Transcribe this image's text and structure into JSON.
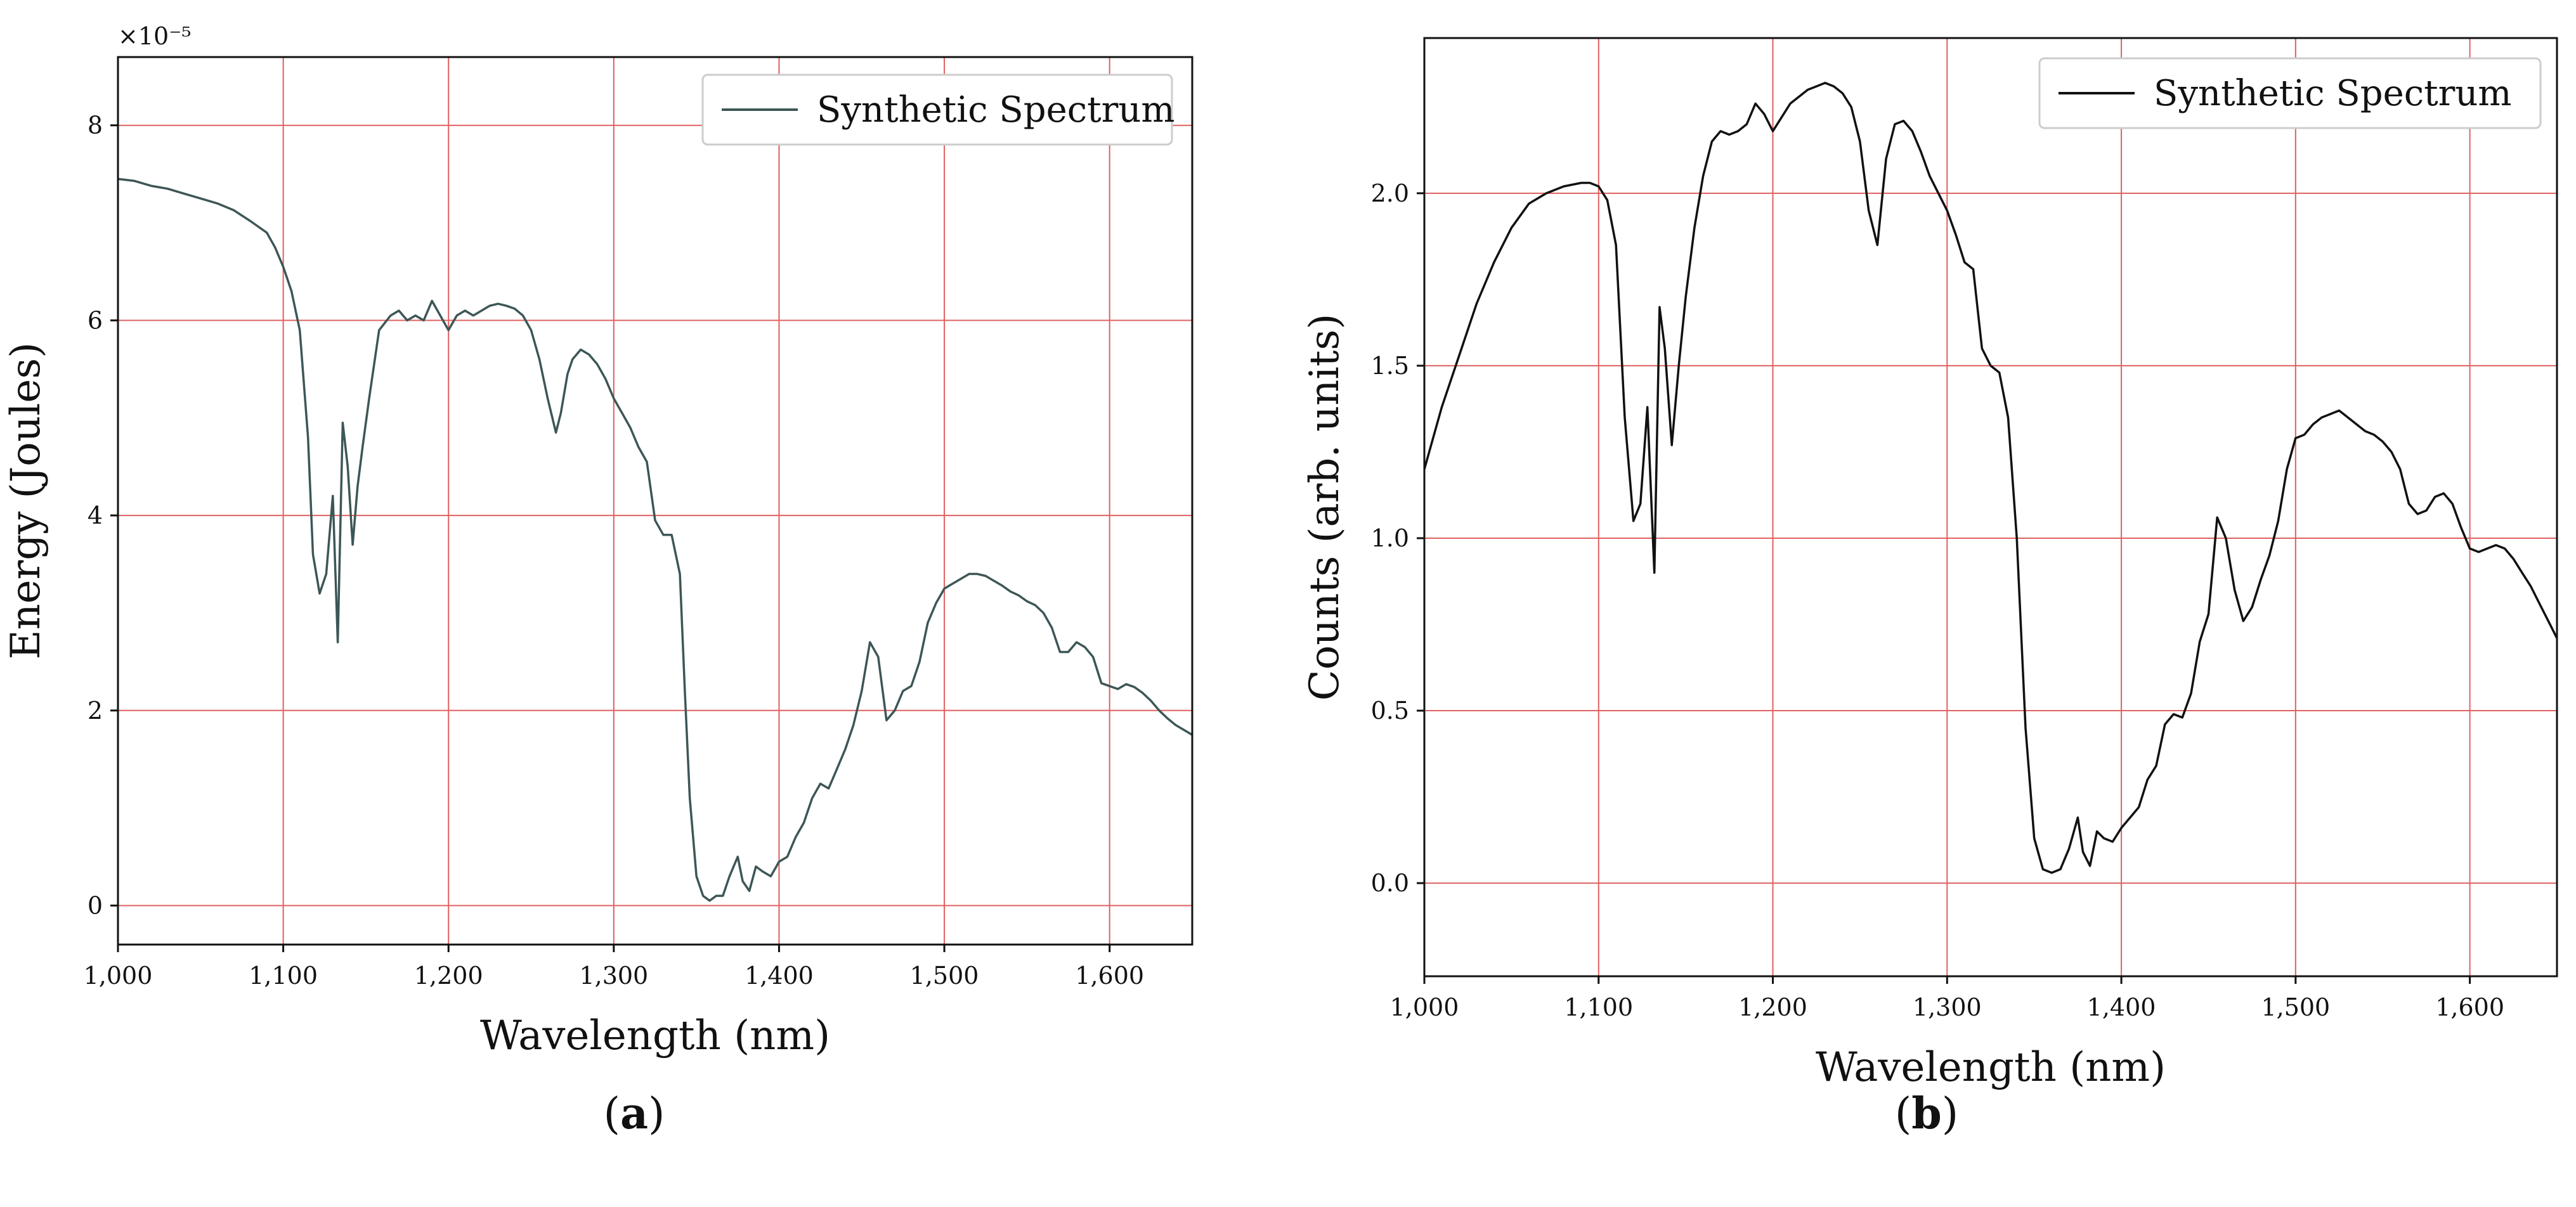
{
  "colors": {
    "grid": "#e06060",
    "line_a": "#3d5656",
    "line_b": "#111111",
    "axis": "#111111"
  },
  "chart_data": [
    {
      "panel_label": "a",
      "type": "line",
      "title": "",
      "xlabel": "Wavelength (nm)",
      "ylabel": "Energy (Joules)",
      "offset_label": "×10⁻⁵",
      "xlim": [
        1000,
        1650
      ],
      "ylim": [
        -0.4,
        8.7
      ],
      "grid": true,
      "legend_position": "top-right",
      "xticks": [
        1000,
        1100,
        1200,
        1300,
        1400,
        1500,
        1600
      ],
      "xtick_labels": [
        "1,000",
        "1,100",
        "1,200",
        "1,300",
        "1,400",
        "1,500",
        "1,600"
      ],
      "yticks": [
        0,
        2,
        4,
        6,
        8
      ],
      "ytick_labels": [
        "0",
        "2",
        "4",
        "6",
        "8"
      ],
      "series": [
        {
          "name": "Synthetic Spectrum",
          "color": "#3d5656",
          "x": [
            1000,
            1010,
            1020,
            1030,
            1040,
            1050,
            1060,
            1070,
            1080,
            1090,
            1095,
            1100,
            1105,
            1110,
            1115,
            1118,
            1122,
            1126,
            1130,
            1133,
            1136,
            1139,
            1142,
            1145,
            1148,
            1152,
            1158,
            1165,
            1170,
            1175,
            1180,
            1185,
            1190,
            1195,
            1200,
            1205,
            1210,
            1215,
            1220,
            1225,
            1230,
            1235,
            1240,
            1245,
            1250,
            1255,
            1260,
            1265,
            1268,
            1272,
            1275,
            1280,
            1285,
            1290,
            1295,
            1300,
            1305,
            1310,
            1315,
            1320,
            1325,
            1330,
            1335,
            1340,
            1343,
            1346,
            1350,
            1354,
            1358,
            1362,
            1366,
            1370,
            1375,
            1378,
            1382,
            1386,
            1390,
            1395,
            1400,
            1405,
            1410,
            1415,
            1420,
            1425,
            1430,
            1435,
            1440,
            1445,
            1450,
            1455,
            1460,
            1465,
            1470,
            1475,
            1480,
            1485,
            1490,
            1495,
            1500,
            1505,
            1510,
            1515,
            1520,
            1525,
            1530,
            1535,
            1540,
            1545,
            1550,
            1555,
            1560,
            1565,
            1570,
            1575,
            1580,
            1585,
            1590,
            1595,
            1600,
            1605,
            1610,
            1615,
            1620,
            1625,
            1630,
            1635,
            1640,
            1645,
            1650
          ],
          "y": [
            7.45,
            7.43,
            7.38,
            7.35,
            7.3,
            7.25,
            7.2,
            7.13,
            7.02,
            6.9,
            6.75,
            6.55,
            6.3,
            5.9,
            4.8,
            3.6,
            3.2,
            3.4,
            4.2,
            2.7,
            4.95,
            4.5,
            3.7,
            4.3,
            4.7,
            5.2,
            5.9,
            6.05,
            6.1,
            6.0,
            6.05,
            6.0,
            6.2,
            6.05,
            5.9,
            6.05,
            6.1,
            6.05,
            6.1,
            6.15,
            6.17,
            6.15,
            6.12,
            6.05,
            5.9,
            5.6,
            5.2,
            4.85,
            5.05,
            5.45,
            5.6,
            5.7,
            5.65,
            5.55,
            5.4,
            5.2,
            5.05,
            4.9,
            4.7,
            4.55,
            3.95,
            3.8,
            3.8,
            3.4,
            2.2,
            1.1,
            0.3,
            0.1,
            0.05,
            0.1,
            0.1,
            0.3,
            0.5,
            0.25,
            0.15,
            0.4,
            0.35,
            0.3,
            0.45,
            0.5,
            0.7,
            0.85,
            1.1,
            1.25,
            1.2,
            1.4,
            1.6,
            1.85,
            2.2,
            2.7,
            2.55,
            1.9,
            2.0,
            2.2,
            2.25,
            2.5,
            2.9,
            3.1,
            3.25,
            3.3,
            3.35,
            3.4,
            3.4,
            3.38,
            3.33,
            3.28,
            3.22,
            3.18,
            3.12,
            3.08,
            3.0,
            2.85,
            2.6,
            2.6,
            2.7,
            2.65,
            2.55,
            2.28,
            2.25,
            2.22,
            2.27,
            2.24,
            2.18,
            2.1,
            2.0,
            1.92,
            1.85,
            1.8,
            1.75
          ]
        }
      ]
    },
    {
      "panel_label": "b",
      "type": "line",
      "title": "",
      "xlabel": "Wavelength (nm)",
      "ylabel": "Counts (arb. units)",
      "xlim": [
        1000,
        1650
      ],
      "ylim": [
        -0.27,
        2.45
      ],
      "grid": true,
      "legend_position": "top-right",
      "xticks": [
        1000,
        1100,
        1200,
        1300,
        1400,
        1500,
        1600
      ],
      "xtick_labels": [
        "1,000",
        "1,100",
        "1,200",
        "1,300",
        "1,400",
        "1,500",
        "1,600"
      ],
      "yticks": [
        0.0,
        0.5,
        1.0,
        1.5,
        2.0
      ],
      "ytick_labels": [
        "0.0",
        "0.5",
        "1.0",
        "1.5",
        "2.0"
      ],
      "series": [
        {
          "name": "Synthetic Spectrum",
          "color": "#111111",
          "x": [
            1000,
            1010,
            1020,
            1030,
            1040,
            1050,
            1060,
            1070,
            1080,
            1090,
            1095,
            1100,
            1105,
            1110,
            1115,
            1120,
            1124,
            1128,
            1132,
            1135,
            1138,
            1142,
            1146,
            1150,
            1155,
            1160,
            1165,
            1170,
            1175,
            1180,
            1185,
            1190,
            1195,
            1200,
            1205,
            1210,
            1215,
            1220,
            1225,
            1230,
            1235,
            1240,
            1245,
            1250,
            1255,
            1260,
            1265,
            1270,
            1275,
            1280,
            1285,
            1290,
            1295,
            1300,
            1305,
            1310,
            1315,
            1320,
            1325,
            1330,
            1335,
            1340,
            1345,
            1350,
            1355,
            1360,
            1365,
            1370,
            1375,
            1378,
            1382,
            1386,
            1390,
            1395,
            1400,
            1405,
            1410,
            1415,
            1420,
            1425,
            1430,
            1435,
            1440,
            1445,
            1450,
            1455,
            1460,
            1465,
            1470,
            1475,
            1480,
            1485,
            1490,
            1495,
            1500,
            1505,
            1510,
            1515,
            1520,
            1525,
            1530,
            1535,
            1540,
            1545,
            1550,
            1555,
            1560,
            1565,
            1570,
            1575,
            1580,
            1585,
            1590,
            1595,
            1600,
            1605,
            1610,
            1615,
            1620,
            1625,
            1630,
            1635,
            1640,
            1645,
            1650
          ],
          "y": [
            1.2,
            1.38,
            1.53,
            1.68,
            1.8,
            1.9,
            1.97,
            2.0,
            2.02,
            2.03,
            2.03,
            2.02,
            1.98,
            1.85,
            1.35,
            1.05,
            1.1,
            1.38,
            0.9,
            1.67,
            1.55,
            1.27,
            1.5,
            1.7,
            1.9,
            2.05,
            2.15,
            2.18,
            2.17,
            2.18,
            2.2,
            2.26,
            2.23,
            2.18,
            2.22,
            2.26,
            2.28,
            2.3,
            2.31,
            2.32,
            2.31,
            2.29,
            2.25,
            2.15,
            1.95,
            1.85,
            2.1,
            2.2,
            2.21,
            2.18,
            2.12,
            2.05,
            2.0,
            1.95,
            1.88,
            1.8,
            1.78,
            1.55,
            1.5,
            1.48,
            1.35,
            1.0,
            0.45,
            0.13,
            0.04,
            0.03,
            0.04,
            0.1,
            0.19,
            0.09,
            0.05,
            0.15,
            0.13,
            0.12,
            0.16,
            0.19,
            0.22,
            0.3,
            0.34,
            0.46,
            0.49,
            0.48,
            0.55,
            0.7,
            0.78,
            1.06,
            1.0,
            0.85,
            0.76,
            0.8,
            0.88,
            0.95,
            1.05,
            1.2,
            1.29,
            1.3,
            1.33,
            1.35,
            1.36,
            1.37,
            1.35,
            1.33,
            1.31,
            1.3,
            1.28,
            1.25,
            1.2,
            1.1,
            1.07,
            1.08,
            1.12,
            1.13,
            1.1,
            1.03,
            0.97,
            0.96,
            0.97,
            0.98,
            0.97,
            0.94,
            0.9,
            0.86,
            0.81,
            0.76,
            0.71
          ]
        }
      ]
    }
  ]
}
